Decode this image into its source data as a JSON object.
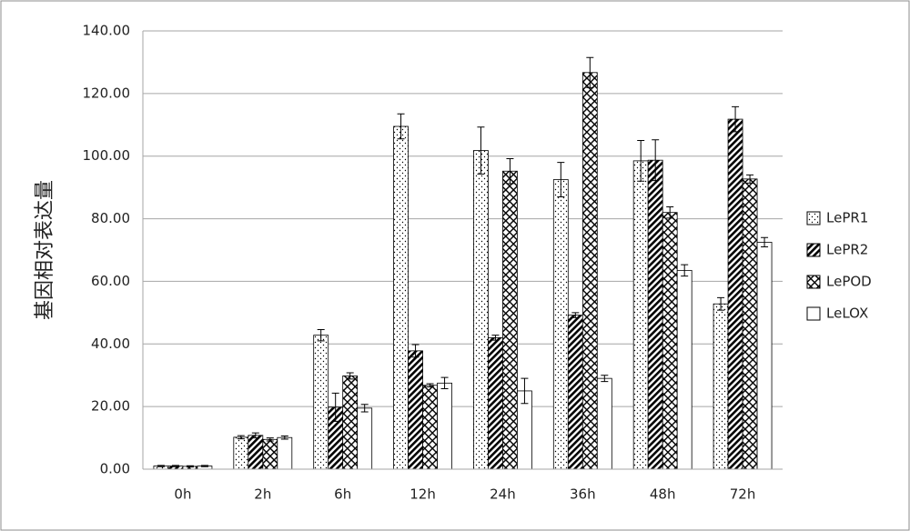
{
  "chart_data": {
    "type": "bar",
    "y_label": "基因相对表达量",
    "categories": [
      "0h",
      "2h",
      "6h",
      "12h",
      "24h",
      "36h",
      "48h",
      "72h"
    ],
    "series": [
      {
        "name": "LePR1",
        "pattern": "dots",
        "color": "#000000",
        "values": [
          1.0,
          10.2,
          42.8,
          109.5,
          101.8,
          92.5,
          98.5,
          52.8
        ],
        "errors": [
          0.2,
          0.5,
          1.8,
          4,
          7.5,
          5.5,
          6.5,
          2
        ]
      },
      {
        "name": "LePR2",
        "pattern": "hatch",
        "color": "#000000",
        "values": [
          1.0,
          10.8,
          19.8,
          37.8,
          42.0,
          49.2,
          98.7,
          111.8
        ],
        "errors": [
          0.2,
          0.8,
          4.5,
          2,
          0.8,
          0.8,
          6.5,
          4
        ]
      },
      {
        "name": "LePOD",
        "pattern": "cross",
        "color": "#000000",
        "values": [
          0.9,
          9.5,
          29.8,
          26.8,
          95.2,
          126.7,
          82.0,
          92.7
        ],
        "errors": [
          0.2,
          0.5,
          1,
          0.5,
          4,
          4.8,
          1.8,
          1.3
        ]
      },
      {
        "name": "LeLOX",
        "pattern": "none",
        "color": "#000000",
        "values": [
          1.0,
          10.1,
          19.5,
          27.5,
          25.0,
          29.0,
          63.5,
          72.5
        ],
        "errors": [
          0.2,
          0.5,
          1.2,
          1.8,
          4,
          1,
          1.8,
          1.5
        ]
      }
    ],
    "ylim": [
      0,
      140
    ],
    "yticks": [
      {
        "value": 0,
        "label": "0.00"
      },
      {
        "value": 20,
        "label": "20.00"
      },
      {
        "value": 40,
        "label": "40.00"
      },
      {
        "value": 60,
        "label": "60.00"
      },
      {
        "value": 80,
        "label": "80.00"
      },
      {
        "value": 100,
        "label": "100.00"
      },
      {
        "value": 120,
        "label": "120.00"
      },
      {
        "value": 140,
        "label": "140.00"
      }
    ],
    "grid": true,
    "legend": "right"
  }
}
